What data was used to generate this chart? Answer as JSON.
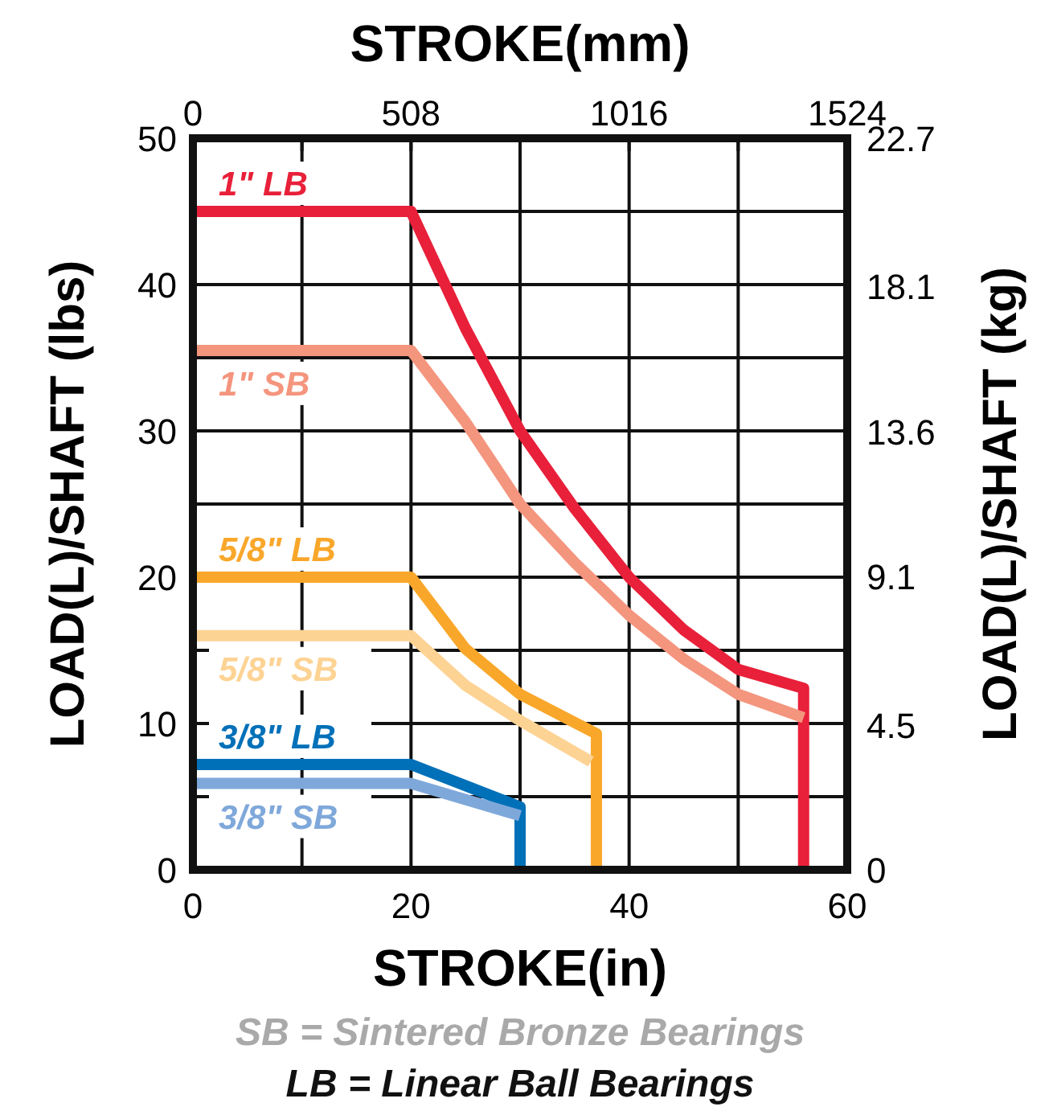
{
  "chart_data": {
    "type": "line",
    "xlabel": "STROKE(in)",
    "x2label": "STROKE(mm)",
    "ylabel": "LOAD(L)/SHAFT (lbs)",
    "y2label": "LOAD(L)/SHAFT (kg)",
    "xlim": [
      0,
      60
    ],
    "xticks": [
      0,
      {
        "value": 10,
        "label": null
      },
      20,
      {
        "value": 30,
        "label": null
      },
      40,
      {
        "value": 50,
        "label": null
      },
      60
    ],
    "x2lim": [
      0,
      1524
    ],
    "x2ticks": [
      0,
      {
        "value": 254,
        "label": null
      },
      508,
      {
        "value": 762,
        "label": null
      },
      1016,
      {
        "value": 1270,
        "label": null
      },
      1524
    ],
    "ylim": [
      0,
      50
    ],
    "yticks": [
      0,
      {
        "value": 5,
        "label": null
      },
      10,
      {
        "value": 15,
        "label": null
      },
      20,
      {
        "value": 25,
        "label": null
      },
      30,
      {
        "value": 35,
        "label": null
      },
      40,
      {
        "value": 45,
        "label": null
      },
      50
    ],
    "y2lim": [
      0,
      22.7
    ],
    "y2ticks": [
      0,
      4.5,
      9.1,
      13.6,
      18.1,
      22.7
    ],
    "grid": true,
    "line_style": "solid",
    "marker": "none",
    "series": [
      {
        "name": "1\" LB",
        "color": "#e8203a",
        "x": [
          0,
          20,
          25,
          30,
          35,
          40,
          45,
          50,
          56,
          56
        ],
        "values": [
          45,
          45,
          37,
          30,
          24.7,
          20,
          16.4,
          13.7,
          12.4,
          0
        ]
      },
      {
        "name": "1\" SB",
        "color": "#f4957e",
        "x": [
          0,
          20,
          25,
          30,
          35,
          40,
          45,
          50,
          56
        ],
        "values": [
          35.5,
          35.5,
          30.6,
          25,
          21,
          17.4,
          14.4,
          12,
          10.4
        ]
      },
      {
        "name": "5/8\" LB",
        "color": "#f9a72b",
        "x": [
          0,
          20,
          25,
          30,
          37,
          37
        ],
        "values": [
          20,
          20,
          15.1,
          12,
          9.3,
          0
        ]
      },
      {
        "name": "5/8\" SB",
        "color": "#fdd394",
        "x": [
          0,
          20,
          25,
          30,
          36.5
        ],
        "values": [
          16,
          16,
          12.6,
          10.2,
          7.4
        ]
      },
      {
        "name": "3/8\" LB",
        "color": "#0070b8",
        "x": [
          0,
          20,
          30,
          30
        ],
        "values": [
          7.2,
          7.2,
          4.3,
          0
        ]
      },
      {
        "name": "3/8\" SB",
        "color": "#7fa8da",
        "x": [
          0,
          20,
          30
        ],
        "values": [
          5.9,
          5.9,
          3.7
        ]
      }
    ],
    "annotations": [
      "SB = Sintered Bronze Bearings",
      "LB = Linear Ball Bearings"
    ]
  }
}
